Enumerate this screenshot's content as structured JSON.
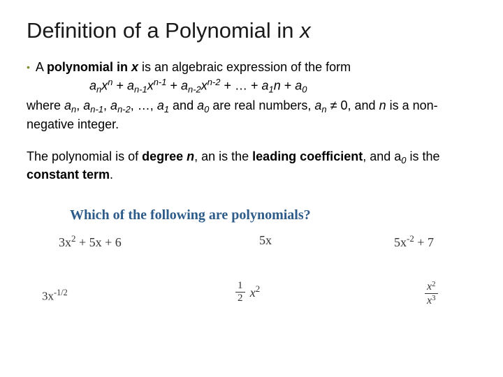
{
  "title_prefix": "Definition of a Polynomial in ",
  "title_var": "x",
  "bullet_prefix": "A ",
  "bullet_bold": "polynomial in ",
  "bullet_boldvar": "x",
  "bullet_rest": " is an algebraic expression of the form",
  "where_1": "where ",
  "where_2": ", …, ",
  "where_3": " and ",
  "where_4": " are real numbers, ",
  "where_5": " ≠ 0, and ",
  "where_6": " is a non-negative integer.",
  "para2_1": "The polynomial is of ",
  "para2_degree": "degree ",
  "para2_degvar": "n",
  "para2_2": ", an is the ",
  "para2_lead": "leading coefficient",
  "para2_3": ", and a",
  "para2_4": " is the ",
  "para2_const": "constant term",
  "para2_5": ".",
  "question": "Which of the following are polynomials?",
  "e1": "3x",
  "e1_exp": "2",
  "e1_rest": " + 5x + 6",
  "e2": "5x",
  "e3": "5x",
  "e3_exp": "-2",
  "e3_rest": " + 7",
  "e4": "3x",
  "e4_exp": "-1/2",
  "frac_num": "1",
  "frac_den": "2",
  "e5_trail": "x",
  "e5_exp": "2",
  "e6_num": "x",
  "e6_num_exp": "2",
  "e6_den": "x",
  "e6_den_exp": "3",
  "colors": {
    "bullet": "#7a9030",
    "question": "#2e5c8a",
    "text": "#000000",
    "math": "#333333"
  }
}
